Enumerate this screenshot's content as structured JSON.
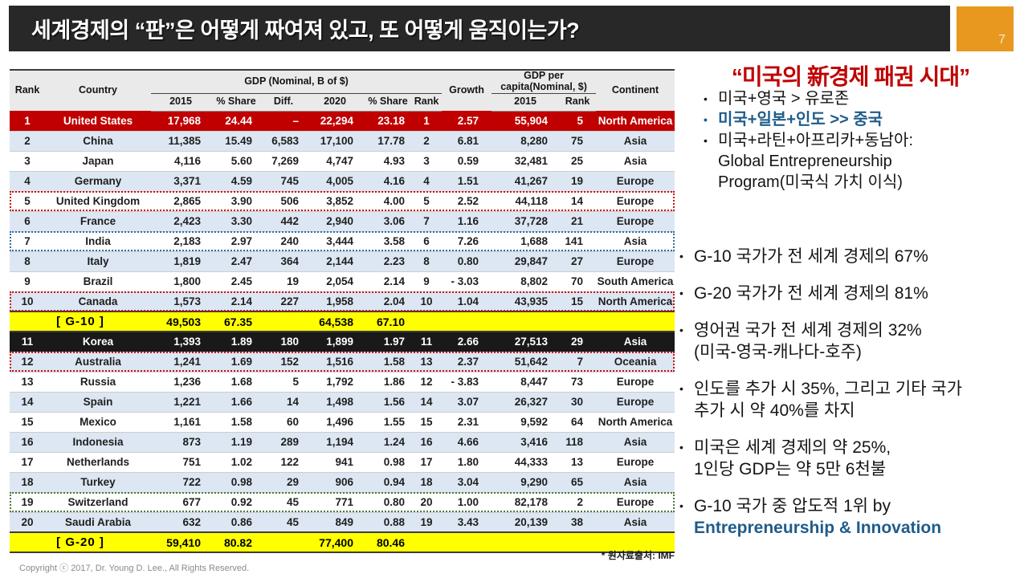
{
  "slide": {
    "title": "세계경제의 “판”은 어떻게 짜여져 있고, 또 어떻게 움직이는가?",
    "page_number": "7",
    "source_note": "* 원자료출처: IMF",
    "copyright": "Copyright ⓒ 2017, Dr. Young D. Lee., All Rights Reserved."
  },
  "colors": {
    "titlebar_bg": "#282828",
    "page_badge_orange": "#E8981E",
    "row_red": "#C00000",
    "row_black": "#191919",
    "stripe_blue": "#DCE7F3",
    "summary_yellow": "#FFFF00",
    "headline_red": "#C00000",
    "emphasis_blue": "#1F5C8B"
  },
  "table": {
    "group_headers": {
      "rank": "Rank",
      "country": "Country",
      "gdp": "GDP (Nominal, B of $)",
      "growth": "Growth",
      "gdp_per_capita": "GDP per capita(Nominal, $)",
      "continent": "Continent"
    },
    "sub_headers": [
      "2015",
      "% Share",
      "Diff.",
      "2020",
      "% Share",
      "Rank",
      "2015",
      "Rank"
    ],
    "rows": [
      {
        "type": "country",
        "rank": "1",
        "country": "United States",
        "values": [
          "17,968",
          "24.44",
          "–",
          "22,294",
          "23.18",
          "1",
          "2.57",
          "55,904",
          "5",
          "North America"
        ],
        "bg": "red",
        "outline": null
      },
      {
        "type": "country",
        "rank": "2",
        "country": "China",
        "values": [
          "11,385",
          "15.49",
          "6,583",
          "17,100",
          "17.78",
          "2",
          "6.81",
          "8,280",
          "75",
          "Asia"
        ],
        "bg": "stripe",
        "outline": null
      },
      {
        "type": "country",
        "rank": "3",
        "country": "Japan",
        "values": [
          "4,116",
          "5.60",
          "7,269",
          "4,747",
          "4.93",
          "3",
          "0.59",
          "32,481",
          "25",
          "Asia"
        ],
        "bg": "white",
        "outline": null
      },
      {
        "type": "country",
        "rank": "4",
        "country": "Germany",
        "values": [
          "3,371",
          "4.59",
          "745",
          "4,005",
          "4.16",
          "4",
          "1.51",
          "41,267",
          "19",
          "Europe"
        ],
        "bg": "stripe",
        "outline": null
      },
      {
        "type": "country",
        "rank": "5",
        "country": "United Kingdom",
        "values": [
          "2,865",
          "3.90",
          "506",
          "3,852",
          "4.00",
          "5",
          "2.52",
          "44,118",
          "14",
          "Europe"
        ],
        "bg": "white",
        "outline": "red"
      },
      {
        "type": "country",
        "rank": "6",
        "country": "France",
        "values": [
          "2,423",
          "3.30",
          "442",
          "2,940",
          "3.06",
          "7",
          "1.16",
          "37,728",
          "21",
          "Europe"
        ],
        "bg": "stripe",
        "outline": null
      },
      {
        "type": "country",
        "rank": "7",
        "country": "India",
        "values": [
          "2,183",
          "2.97",
          "240",
          "3,444",
          "3.58",
          "6",
          "7.26",
          "1,688",
          "141",
          "Asia"
        ],
        "bg": "white",
        "outline": "blue"
      },
      {
        "type": "country",
        "rank": "8",
        "country": "Italy",
        "values": [
          "1,819",
          "2.47",
          "364",
          "2,144",
          "2.23",
          "8",
          "0.80",
          "29,847",
          "27",
          "Europe"
        ],
        "bg": "stripe",
        "outline": null
      },
      {
        "type": "country",
        "rank": "9",
        "country": "Brazil",
        "values": [
          "1,800",
          "2.45",
          "19",
          "2,054",
          "2.14",
          "9",
          "- 3.03",
          "8,802",
          "70",
          "South America"
        ],
        "bg": "white",
        "outline": null
      },
      {
        "type": "country",
        "rank": "10",
        "country": "Canada",
        "values": [
          "1,573",
          "2.14",
          "227",
          "1,958",
          "2.04",
          "10",
          "1.04",
          "43,935",
          "15",
          "North America"
        ],
        "bg": "stripe",
        "outline": "red"
      },
      {
        "type": "summary",
        "label": "[ G-10 ]",
        "values": [
          "49,503",
          "67.35",
          "",
          "64,538",
          "67.10",
          "",
          "",
          "",
          "",
          ""
        ],
        "bg": "summary",
        "outline": null
      },
      {
        "type": "country",
        "rank": "11",
        "country": "Korea",
        "values": [
          "1,393",
          "1.89",
          "180",
          "1,899",
          "1.97",
          "11",
          "2.66",
          "27,513",
          "29",
          "Asia"
        ],
        "bg": "black",
        "outline": null
      },
      {
        "type": "country",
        "rank": "12",
        "country": "Australia",
        "values": [
          "1,241",
          "1.69",
          "152",
          "1,516",
          "1.58",
          "13",
          "2.37",
          "51,642",
          "7",
          "Oceania"
        ],
        "bg": "stripe",
        "outline": "red"
      },
      {
        "type": "country",
        "rank": "13",
        "country": "Russia",
        "values": [
          "1,236",
          "1.68",
          "5",
          "1,792",
          "1.86",
          "12",
          "- 3.83",
          "8,447",
          "73",
          "Europe"
        ],
        "bg": "white",
        "outline": null
      },
      {
        "type": "country",
        "rank": "14",
        "country": "Spain",
        "values": [
          "1,221",
          "1.66",
          "14",
          "1,498",
          "1.56",
          "14",
          "3.07",
          "26,327",
          "30",
          "Europe"
        ],
        "bg": "stripe",
        "outline": null
      },
      {
        "type": "country",
        "rank": "15",
        "country": "Mexico",
        "values": [
          "1,161",
          "1.58",
          "60",
          "1,496",
          "1.55",
          "15",
          "2.31",
          "9,592",
          "64",
          "North America"
        ],
        "bg": "white",
        "outline": null
      },
      {
        "type": "country",
        "rank": "16",
        "country": "Indonesia",
        "values": [
          "873",
          "1.19",
          "289",
          "1,194",
          "1.24",
          "16",
          "4.66",
          "3,416",
          "118",
          "Asia"
        ],
        "bg": "stripe",
        "outline": null
      },
      {
        "type": "country",
        "rank": "17",
        "country": "Netherlands",
        "values": [
          "751",
          "1.02",
          "122",
          "941",
          "0.98",
          "17",
          "1.80",
          "44,333",
          "13",
          "Europe"
        ],
        "bg": "white",
        "outline": null
      },
      {
        "type": "country",
        "rank": "18",
        "country": "Turkey",
        "values": [
          "722",
          "0.98",
          "29",
          "906",
          "0.94",
          "18",
          "3.04",
          "9,290",
          "65",
          "Asia"
        ],
        "bg": "stripe",
        "outline": null
      },
      {
        "type": "country",
        "rank": "19",
        "country": "Switzerland",
        "values": [
          "677",
          "0.92",
          "45",
          "771",
          "0.80",
          "20",
          "1.00",
          "82,178",
          "2",
          "Europe"
        ],
        "bg": "white",
        "outline": "green"
      },
      {
        "type": "country",
        "rank": "20",
        "country": "Saudi Arabia",
        "values": [
          "632",
          "0.86",
          "45",
          "849",
          "0.88",
          "19",
          "3.43",
          "20,139",
          "38",
          "Asia"
        ],
        "bg": "stripe",
        "outline": null
      },
      {
        "type": "summary",
        "label": "[ G-20 ]",
        "values": [
          "59,410",
          "80.82",
          "",
          "77,400",
          "80.46",
          "",
          "",
          "",
          "",
          ""
        ],
        "bg": "summary",
        "outline": null
      }
    ]
  },
  "right_panel": {
    "headline": {
      "pre": "“미국의 ",
      "hanja": "新",
      "post": "경제 패권 시대”"
    },
    "sub_bullets": [
      {
        "lines": [
          "미국+영국 > 유로존"
        ],
        "emphasis": false
      },
      {
        "lines": [
          "미국+일본+인도 >> 중국"
        ],
        "emphasis": true
      },
      {
        "lines": [
          "미국+라틴+아프리카+동남아:",
          "Global Entrepreneurship",
          "Program(미국식 가치 이식)"
        ],
        "emphasis": false
      }
    ],
    "main_bullets": [
      {
        "lines": [
          "G-10 국가가 전 세계 경제의 67%"
        ]
      },
      {
        "lines": [
          "G-20 국가가 전 세계 경제의 81%"
        ]
      },
      {
        "lines": [
          "영어권 국가 전 세계 경제의 32%",
          "(미국-영국-캐나다-호주)"
        ]
      },
      {
        "lines": [
          "인도를 추가 시 35%, 그리고 기타 국가",
          "추가 시 약 40%를 차지"
        ]
      },
      {
        "lines": [
          "미국은 세계 경제의 약 25%,",
          "1인당 GDP는 약 5만 6천불"
        ]
      },
      {
        "lines": [
          "G-10 국가 중 압도적 1위 by",
          "Entrepreneurship & Innovation"
        ],
        "emphasis_line": 1
      }
    ]
  }
}
